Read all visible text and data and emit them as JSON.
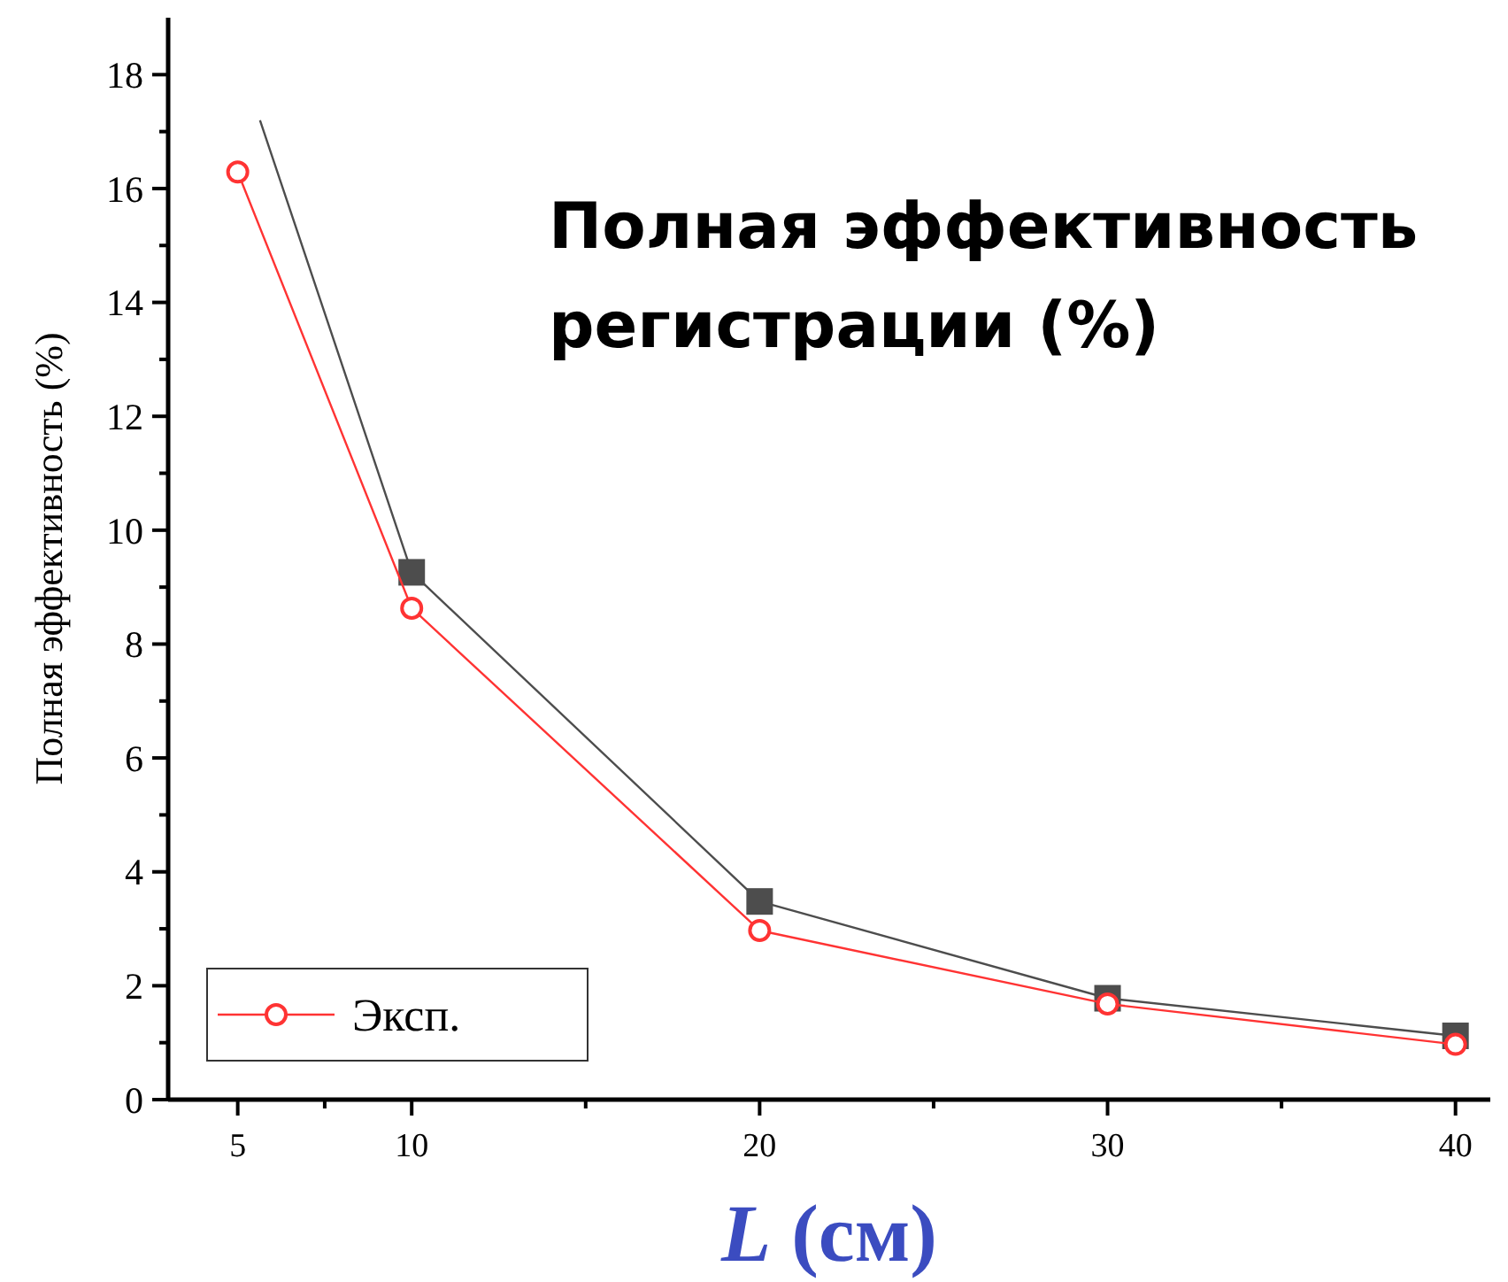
{
  "chart_data": {
    "type": "line",
    "xlabel": "L (см)",
    "ylabel": "Полная эффективность (%)",
    "annotations": [
      "Полная эффективность регистрации (%)"
    ],
    "x": [
      5,
      10,
      20,
      30,
      40
    ],
    "xlim": [
      3,
      41
    ],
    "xticks": [
      5,
      {
        "value": 7.5,
        "label": null
      },
      10,
      {
        "value": 15,
        "label": null
      },
      20,
      {
        "value": 25,
        "label": null
      },
      30,
      {
        "value": 35,
        "label": null
      },
      40
    ],
    "ylim": [
      0,
      19
    ],
    "yticks": [
      0,
      {
        "value": 1,
        "label": null
      },
      2,
      {
        "value": 3,
        "label": null
      },
      4,
      {
        "value": 5,
        "label": null
      },
      6,
      {
        "value": 7,
        "label": null
      },
      8,
      {
        "value": 9,
        "label": null
      },
      10,
      {
        "value": 11,
        "label": null
      },
      12,
      {
        "value": 13,
        "label": null
      },
      14,
      {
        "value": 15,
        "label": null
      },
      16,
      {
        "value": 17,
        "label": null
      },
      18
    ],
    "grid": false,
    "legend": "bottom left",
    "series": [
      {
        "color": "#4d4d4d",
        "marker": "square",
        "x": [
          5.64,
          10,
          20,
          30,
          40
        ],
        "values": [
          17.2,
          9.26,
          3.48,
          1.78,
          1.12
        ]
      },
      {
        "name": "Эксп.",
        "color": "#ff3333",
        "marker": "circle",
        "values": [
          16.29,
          8.63,
          2.97,
          1.68,
          0.97
        ]
      }
    ]
  }
}
